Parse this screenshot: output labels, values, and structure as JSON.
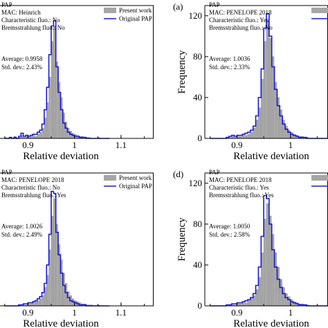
{
  "chart_data": [
    {
      "id": "top-left",
      "type": "bar",
      "panel_label": "",
      "xlabel": "Relative deviation",
      "ylabel": "",
      "xlim": [
        0.84,
        1.17
      ],
      "ylim": [
        0,
        130
      ],
      "xticks": [
        "0.9",
        "1",
        "1.1"
      ],
      "yticks": [],
      "annotations": [
        "PAP",
        "MAC: Heinrich",
        "Characteristic fluo.: No",
        "Bremsstrahlung fluo.: No"
      ],
      "stats": [
        "Average: 0.9958",
        "Std. dev.: 2.43%"
      ],
      "legend": {
        "present": "Present work",
        "original": "Original PAP",
        "position": "top-right"
      },
      "bins_start": 0.85,
      "bin_width": 0.005,
      "bar_values": [
        1,
        0,
        1,
        0,
        2,
        0,
        1,
        3,
        1,
        2,
        1,
        2,
        3,
        2,
        4,
        6,
        10,
        20,
        35,
        60,
        95,
        110,
        75,
        55,
        40,
        25,
        16,
        10,
        7,
        5,
        4,
        3,
        2,
        2,
        1,
        1,
        1,
        0,
        0,
        0,
        1,
        0,
        0,
        0,
        0
      ],
      "line_values": [
        0,
        0,
        1,
        0,
        1,
        0,
        2,
        5,
        2,
        3,
        2,
        3,
        4,
        4,
        6,
        8,
        14,
        28,
        50,
        82,
        110,
        115,
        70,
        45,
        28,
        15,
        10,
        6,
        4,
        3,
        2,
        2,
        1,
        1,
        1,
        0,
        0,
        0,
        0,
        0,
        0,
        0,
        0,
        0,
        0
      ]
    },
    {
      "id": "top-right",
      "type": "bar",
      "panel_label": "(a)",
      "xlabel": "Relative deviation",
      "ylabel": "Frequency",
      "xlim": [
        0.84,
        1.07
      ],
      "ylim": [
        0,
        130
      ],
      "xticks": [
        "0.9",
        "1"
      ],
      "yticks": [
        "0",
        "40",
        "80",
        "120"
      ],
      "annotations": [
        "PAP",
        "MAC: PENELOPE 2018",
        "Characteristic fluo.: Yes",
        "Bremsstrahlung fluo.: No"
      ],
      "stats": [
        "Average: 1.0036",
        "Std. dev.: 2.33%"
      ],
      "legend": {
        "present": "",
        "original": "",
        "position": "top-right"
      },
      "bins_start": 0.85,
      "bin_width": 0.005,
      "bar_values": [
        0,
        0,
        0,
        0,
        0,
        0,
        1,
        1,
        2,
        1,
        2,
        2,
        3,
        3,
        4,
        6,
        10,
        18,
        30,
        58,
        95,
        115,
        98,
        80,
        55,
        40,
        28,
        18,
        12,
        8,
        6,
        4,
        3,
        2,
        2,
        1,
        1,
        0,
        0,
        0,
        0,
        0,
        0,
        0,
        0
      ],
      "line_values": [
        0,
        0,
        0,
        0,
        0,
        0,
        1,
        2,
        3,
        2,
        3,
        3,
        4,
        5,
        6,
        8,
        12,
        22,
        40,
        68,
        108,
        122,
        100,
        70,
        48,
        32,
        22,
        14,
        9,
        6,
        4,
        3,
        2,
        1,
        1,
        1,
        0,
        0,
        0,
        0,
        0,
        0,
        0,
        0,
        0
      ]
    },
    {
      "id": "bottom-left",
      "type": "bar",
      "panel_label": "",
      "xlabel": "Relative deviation",
      "ylabel": "",
      "xlim": [
        0.84,
        1.17
      ],
      "ylim": [
        0,
        130
      ],
      "xticks": [
        "0.9",
        "1",
        "1.1"
      ],
      "yticks": [],
      "annotations": [
        "PAP",
        "MAC: PENELOPE 2018",
        "Characteristic fluo.: No",
        "Bremsstrahlung fluo.: Yes"
      ],
      "stats": [
        "Average: 1.0026",
        "Std. dev.: 2.49%"
      ],
      "legend": {
        "present": "Present work",
        "original": "Original PAP",
        "position": "top-right"
      },
      "bins_start": 0.85,
      "bin_width": 0.005,
      "bar_values": [
        0,
        0,
        0,
        0,
        0,
        0,
        1,
        0,
        1,
        1,
        2,
        2,
        3,
        4,
        5,
        7,
        10,
        18,
        30,
        55,
        88,
        105,
        80,
        60,
        45,
        32,
        22,
        14,
        10,
        7,
        5,
        4,
        3,
        2,
        2,
        1,
        1,
        1,
        0,
        0,
        1,
        0,
        0,
        0,
        0
      ],
      "line_values": [
        0,
        0,
        0,
        0,
        0,
        0,
        1,
        1,
        2,
        2,
        3,
        3,
        4,
        5,
        7,
        9,
        13,
        22,
        40,
        70,
        112,
        110,
        72,
        50,
        32,
        20,
        13,
        8,
        5,
        4,
        3,
        2,
        1,
        1,
        1,
        0,
        0,
        0,
        0,
        0,
        0,
        0,
        0,
        0,
        0
      ]
    },
    {
      "id": "bottom-right",
      "type": "bar",
      "panel_label": "(d)",
      "xlabel": "Relative deviation",
      "ylabel": "Frequency",
      "xlim": [
        0.84,
        1.07
      ],
      "ylim": [
        0,
        130
      ],
      "xticks": [
        "0.9",
        "1"
      ],
      "yticks": [
        "0",
        "40",
        "80",
        "120"
      ],
      "annotations": [
        "PAP",
        "MAC: PENELOPE 2018",
        "Characteristic fluo.: Yes",
        "Bremsstrahlung fluo.: Yes"
      ],
      "stats": [
        "Average: 1.0050",
        "Std. dev.: 2.58%"
      ],
      "legend": {
        "present": "",
        "original": "",
        "position": "top-right"
      },
      "bins_start": 0.85,
      "bin_width": 0.005,
      "bar_values": [
        0,
        0,
        0,
        0,
        0,
        0,
        0,
        1,
        1,
        1,
        2,
        2,
        3,
        3,
        5,
        7,
        10,
        16,
        28,
        52,
        85,
        100,
        88,
        70,
        52,
        38,
        26,
        18,
        12,
        9,
        6,
        4,
        3,
        2,
        2,
        1,
        1,
        0,
        0,
        0,
        0,
        0,
        0,
        0,
        0
      ],
      "line_values": [
        0,
        0,
        0,
        0,
        0,
        0,
        1,
        1,
        2,
        2,
        3,
        3,
        4,
        5,
        6,
        8,
        12,
        20,
        38,
        68,
        108,
        105,
        80,
        55,
        38,
        26,
        18,
        12,
        8,
        6,
        4,
        3,
        2,
        1,
        1,
        1,
        0,
        0,
        0,
        0,
        0,
        0,
        0,
        0,
        0
      ]
    }
  ]
}
